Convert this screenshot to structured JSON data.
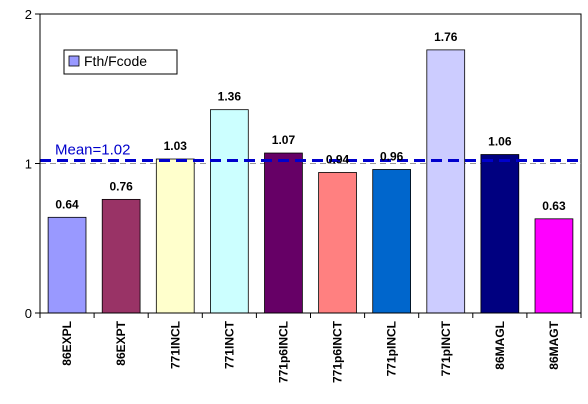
{
  "chart_data": {
    "type": "bar",
    "categories": [
      "86EXPL",
      "86EXPT",
      "771INCL",
      "771INCT",
      "771p6INCL",
      "771p6INCT",
      "771pINCL",
      "771pINCT",
      "86MAGL",
      "86MAGT"
    ],
    "series": [
      {
        "name": "Fth/Fcode",
        "values": [
          0.64,
          0.76,
          1.03,
          1.36,
          1.07,
          0.94,
          0.96,
          1.76,
          1.06,
          0.63
        ],
        "colors": [
          "#9999ff",
          "#993366",
          "#ffffcc",
          "#ccffff",
          "#660066",
          "#ff8080",
          "#0066cc",
          "#ccccff",
          "#000080",
          "#ff00ff"
        ]
      }
    ],
    "data_labels": [
      "0.64",
      "0.76",
      "1.03",
      "1.36",
      "1.07",
      "0.94",
      "0.96",
      "1.76",
      "1.06",
      "0.63"
    ],
    "mean": {
      "label": "Mean=1.02",
      "value": 1.02,
      "color": "#0000cc"
    },
    "reference_line": {
      "value": 1,
      "color": "#999999"
    },
    "y_ticks": [
      "0",
      "1",
      "2"
    ],
    "ylim": [
      0,
      2
    ],
    "grid": false,
    "legend_position": "top-left",
    "title": "",
    "xlabel": "",
    "ylabel": ""
  }
}
